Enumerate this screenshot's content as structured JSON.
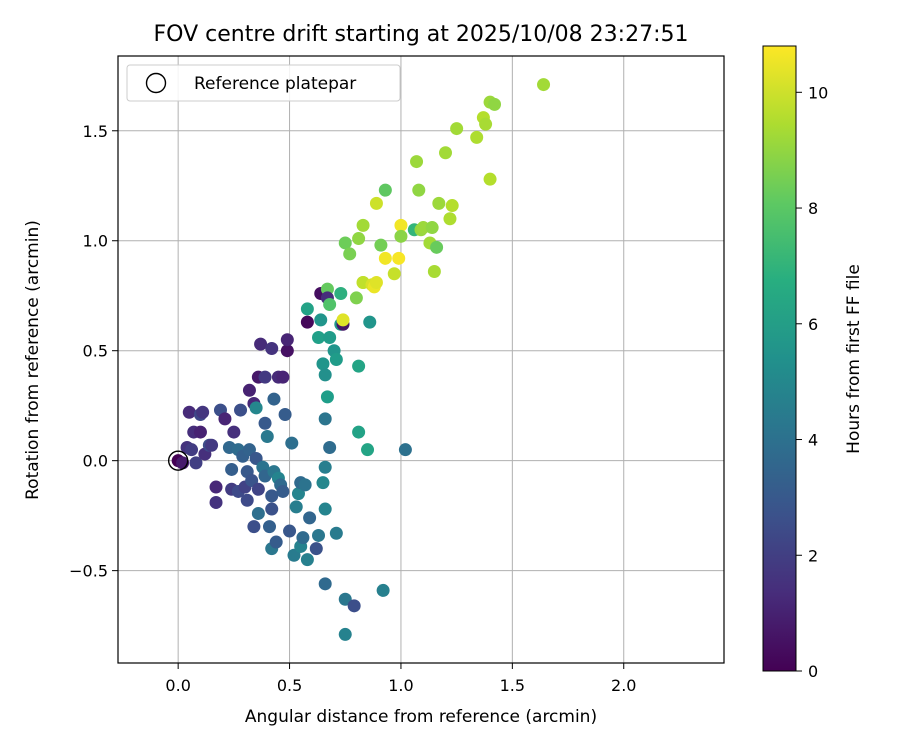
{
  "chart_data": {
    "type": "scatter",
    "title": "FOV centre drift starting at 2025/10/08 23:27:51",
    "xlabel": "Angular distance from reference (arcmin)",
    "ylabel": "Rotation from reference (arcmin)",
    "xlim": [
      -0.27,
      2.45
    ],
    "ylim": [
      -0.92,
      1.84
    ],
    "x_ticks": [
      0.0,
      0.5,
      1.0,
      1.5,
      2.0
    ],
    "x_tick_labels": [
      "0.0",
      "0.5",
      "1.0",
      "1.5",
      "2.0"
    ],
    "y_ticks": [
      -0.5,
      0.0,
      0.5,
      1.0,
      1.5
    ],
    "y_tick_labels": [
      "−0.5",
      "0.0",
      "0.5",
      "1.0",
      "1.5"
    ],
    "grid": true,
    "legend": {
      "position": "top-left",
      "entries": [
        "Reference platepar"
      ]
    },
    "reference_point": {
      "x": 0.0,
      "y": 0.0
    },
    "colorbar": {
      "label": "Hours from first FF file",
      "colormap": "viridis",
      "range": [
        0,
        10.8
      ],
      "ticks": [
        0,
        2,
        4,
        6,
        8,
        10
      ],
      "tick_labels": [
        "0",
        "2",
        "4",
        "6",
        "8",
        "10"
      ]
    },
    "points": [
      [
        0.0,
        0.0,
        0.0
      ],
      [
        0.02,
        -0.01,
        0.8
      ],
      [
        0.04,
        0.06,
        1.6
      ],
      [
        0.05,
        0.22,
        1.3
      ],
      [
        0.06,
        0.05,
        1.9
      ],
      [
        0.07,
        0.13,
        1.4
      ],
      [
        0.08,
        -0.01,
        2.0
      ],
      [
        0.1,
        0.13,
        1.0
      ],
      [
        0.1,
        0.21,
        2.3
      ],
      [
        0.11,
        0.22,
        1.7
      ],
      [
        0.12,
        0.03,
        1.5
      ],
      [
        0.14,
        0.07,
        2.5
      ],
      [
        0.15,
        0.07,
        1.8
      ],
      [
        0.17,
        -0.12,
        1.2
      ],
      [
        0.17,
        -0.19,
        1.6
      ],
      [
        0.19,
        0.23,
        2.6
      ],
      [
        0.21,
        0.19,
        1.1
      ],
      [
        0.23,
        0.06,
        3.6
      ],
      [
        0.24,
        -0.04,
        3.2
      ],
      [
        0.24,
        -0.13,
        1.9
      ],
      [
        0.25,
        0.13,
        1.5
      ],
      [
        0.27,
        -0.14,
        2.4
      ],
      [
        0.27,
        0.05,
        3.8
      ],
      [
        0.28,
        0.23,
        2.6
      ],
      [
        0.29,
        0.02,
        3.3
      ],
      [
        0.3,
        -0.12,
        2.1
      ],
      [
        0.31,
        -0.18,
        2.4
      ],
      [
        0.31,
        -0.05,
        3.0
      ],
      [
        0.32,
        0.05,
        3.4
      ],
      [
        0.32,
        0.32,
        1.0
      ],
      [
        0.33,
        -0.09,
        2.8
      ],
      [
        0.34,
        -0.3,
        2.6
      ],
      [
        0.34,
        0.26,
        1.2
      ],
      [
        0.35,
        0.01,
        2.9
      ],
      [
        0.35,
        0.24,
        5.0
      ],
      [
        0.36,
        -0.24,
        3.9
      ],
      [
        0.36,
        -0.13,
        2.2
      ],
      [
        0.37,
        0.53,
        1.3
      ],
      [
        0.36,
        0.38,
        0.7
      ],
      [
        0.38,
        -0.03,
        4.1
      ],
      [
        0.39,
        -0.07,
        3.5
      ],
      [
        0.39,
        0.17,
        3.0
      ],
      [
        0.39,
        0.38,
        1.8
      ],
      [
        0.4,
        0.11,
        4.4
      ],
      [
        0.41,
        -0.3,
        3.3
      ],
      [
        0.42,
        -0.4,
        4.3
      ],
      [
        0.42,
        -0.16,
        3.0
      ],
      [
        0.42,
        0.51,
        1.6
      ],
      [
        0.42,
        -0.22,
        2.7
      ],
      [
        0.43,
        -0.05,
        4.3
      ],
      [
        0.43,
        0.28,
        3.4
      ],
      [
        0.44,
        -0.37,
        3.1
      ],
      [
        0.45,
        0.38,
        1.3
      ],
      [
        0.45,
        -0.08,
        4.9
      ],
      [
        0.46,
        -0.11,
        3.7
      ],
      [
        0.47,
        0.38,
        1.1
      ],
      [
        0.47,
        -0.14,
        3.1
      ],
      [
        0.48,
        0.21,
        3.1
      ],
      [
        0.49,
        0.5,
        0.5
      ],
      [
        0.49,
        0.55,
        1.1
      ],
      [
        0.5,
        -0.32,
        2.9
      ],
      [
        0.51,
        0.08,
        3.9
      ],
      [
        0.52,
        -0.43,
        4.5
      ],
      [
        0.53,
        -0.21,
        4.6
      ],
      [
        0.54,
        -0.15,
        4.9
      ],
      [
        0.55,
        -0.1,
        3.7
      ],
      [
        0.55,
        -0.39,
        4.8
      ],
      [
        0.56,
        -0.35,
        3.7
      ],
      [
        0.57,
        -0.11,
        4.1
      ],
      [
        0.58,
        0.63,
        0.2
      ],
      [
        0.58,
        -0.45,
        4.7
      ],
      [
        0.58,
        0.69,
        6.2
      ],
      [
        0.59,
        -0.26,
        3.5
      ],
      [
        0.62,
        -0.4,
        2.7
      ],
      [
        0.63,
        0.56,
        6.1
      ],
      [
        0.63,
        -0.34,
        4.3
      ],
      [
        0.64,
        0.64,
        5.6
      ],
      [
        0.64,
        0.76,
        0.4
      ],
      [
        0.65,
        -0.1,
        5.0
      ],
      [
        0.65,
        0.44,
        5.6
      ],
      [
        0.66,
        0.39,
        5.4
      ],
      [
        0.66,
        0.19,
        4.2
      ],
      [
        0.66,
        -0.03,
        4.6
      ],
      [
        0.66,
        -0.22,
        4.9
      ],
      [
        0.66,
        -0.56,
        3.7
      ],
      [
        0.67,
        0.78,
        8.2
      ],
      [
        0.67,
        0.29,
        6.0
      ],
      [
        0.67,
        0.74,
        1.4
      ],
      [
        0.68,
        0.71,
        7.8
      ],
      [
        0.68,
        0.06,
        3.8
      ],
      [
        0.68,
        0.56,
        5.9
      ],
      [
        0.7,
        0.5,
        5.6
      ],
      [
        0.71,
        -0.33,
        4.5
      ],
      [
        0.71,
        0.46,
        5.9
      ],
      [
        0.73,
        0.62,
        5.8
      ],
      [
        0.73,
        0.76,
        6.8
      ],
      [
        0.74,
        0.62,
        0.6
      ],
      [
        0.74,
        0.64,
        10.3
      ],
      [
        0.75,
        -0.63,
        4.3
      ],
      [
        0.75,
        -0.79,
        4.8
      ],
      [
        0.75,
        0.99,
        8.4
      ],
      [
        0.77,
        0.94,
        8.6
      ],
      [
        0.79,
        -0.66,
        2.6
      ],
      [
        0.8,
        0.74,
        8.7
      ],
      [
        0.81,
        1.01,
        9.0
      ],
      [
        0.81,
        0.43,
        6.3
      ],
      [
        0.81,
        0.13,
        6.2
      ],
      [
        0.83,
        1.07,
        9.3
      ],
      [
        0.83,
        0.81,
        10.1
      ],
      [
        0.83,
        0.81,
        9.8
      ],
      [
        0.85,
        0.05,
        6.3
      ],
      [
        0.86,
        0.63,
        5.6
      ],
      [
        0.87,
        0.8,
        10.2
      ],
      [
        0.88,
        0.79,
        10.5
      ],
      [
        0.89,
        1.17,
        10.0
      ],
      [
        0.89,
        0.81,
        10.3
      ],
      [
        0.91,
        0.98,
        8.5
      ],
      [
        0.92,
        -0.59,
        4.7
      ],
      [
        0.93,
        1.23,
        8.1
      ],
      [
        0.93,
        0.92,
        10.6
      ],
      [
        0.97,
        0.85,
        9.9
      ],
      [
        0.99,
        0.92,
        10.7
      ],
      [
        1.0,
        1.07,
        10.6
      ],
      [
        1.0,
        1.02,
        8.9
      ],
      [
        1.02,
        0.05,
        4.0
      ],
      [
        1.06,
        1.05,
        7.1
      ],
      [
        1.07,
        1.36,
        9.2
      ],
      [
        1.08,
        1.23,
        9.0
      ],
      [
        1.09,
        1.05,
        9.1
      ],
      [
        1.1,
        1.06,
        9.2
      ],
      [
        1.13,
        0.99,
        9.3
      ],
      [
        1.14,
        1.06,
        9.0
      ],
      [
        1.15,
        0.86,
        9.4
      ],
      [
        1.16,
        0.97,
        8.3
      ],
      [
        1.17,
        1.17,
        9.2
      ],
      [
        1.2,
        1.4,
        9.3
      ],
      [
        1.22,
        1.1,
        9.5
      ],
      [
        1.23,
        1.16,
        9.6
      ],
      [
        1.25,
        1.51,
        9.3
      ],
      [
        1.34,
        1.47,
        9.5
      ],
      [
        1.37,
        1.56,
        9.6
      ],
      [
        1.38,
        1.53,
        9.4
      ],
      [
        1.4,
        1.28,
        9.6
      ],
      [
        1.4,
        1.63,
        9.2
      ],
      [
        1.42,
        1.62,
        9.0
      ],
      [
        1.64,
        1.71,
        9.3
      ]
    ]
  }
}
